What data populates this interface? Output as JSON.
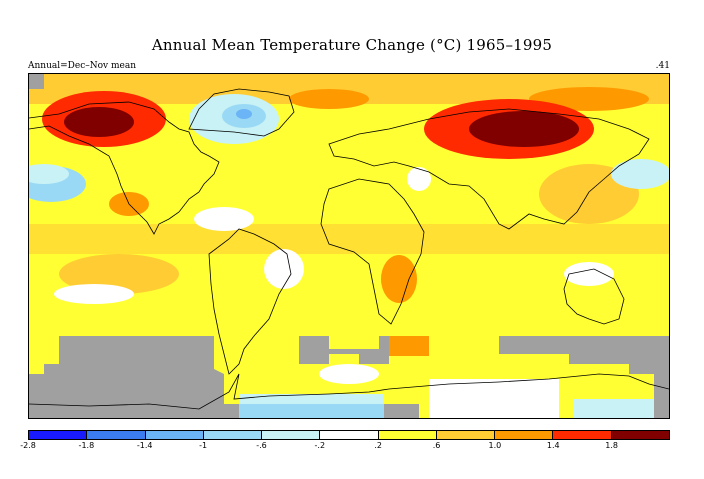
{
  "title": "Annual Mean Temperature Change (°C) 1965–1995",
  "subtitle_left": "Annual=Dec–Nov mean",
  "subtitle_right": ".41",
  "colors": {
    "missing": "#a0a0a0",
    "land_outline": "#000000"
  },
  "legend": {
    "colors": [
      "#1a1aff",
      "#3b7cf0",
      "#6bb4f5",
      "#9ad9f5",
      "#c8f2f5",
      "#ffffff",
      "#ffff33",
      "#ffcc33",
      "#ff9900",
      "#ff2a00",
      "#800000"
    ],
    "ticks": [
      "-2.8",
      "-1.8",
      "-1.4",
      "-1",
      "-.6",
      "-.2",
      ".2",
      ".6",
      "1.0",
      "1.4",
      "1.8"
    ]
  }
}
